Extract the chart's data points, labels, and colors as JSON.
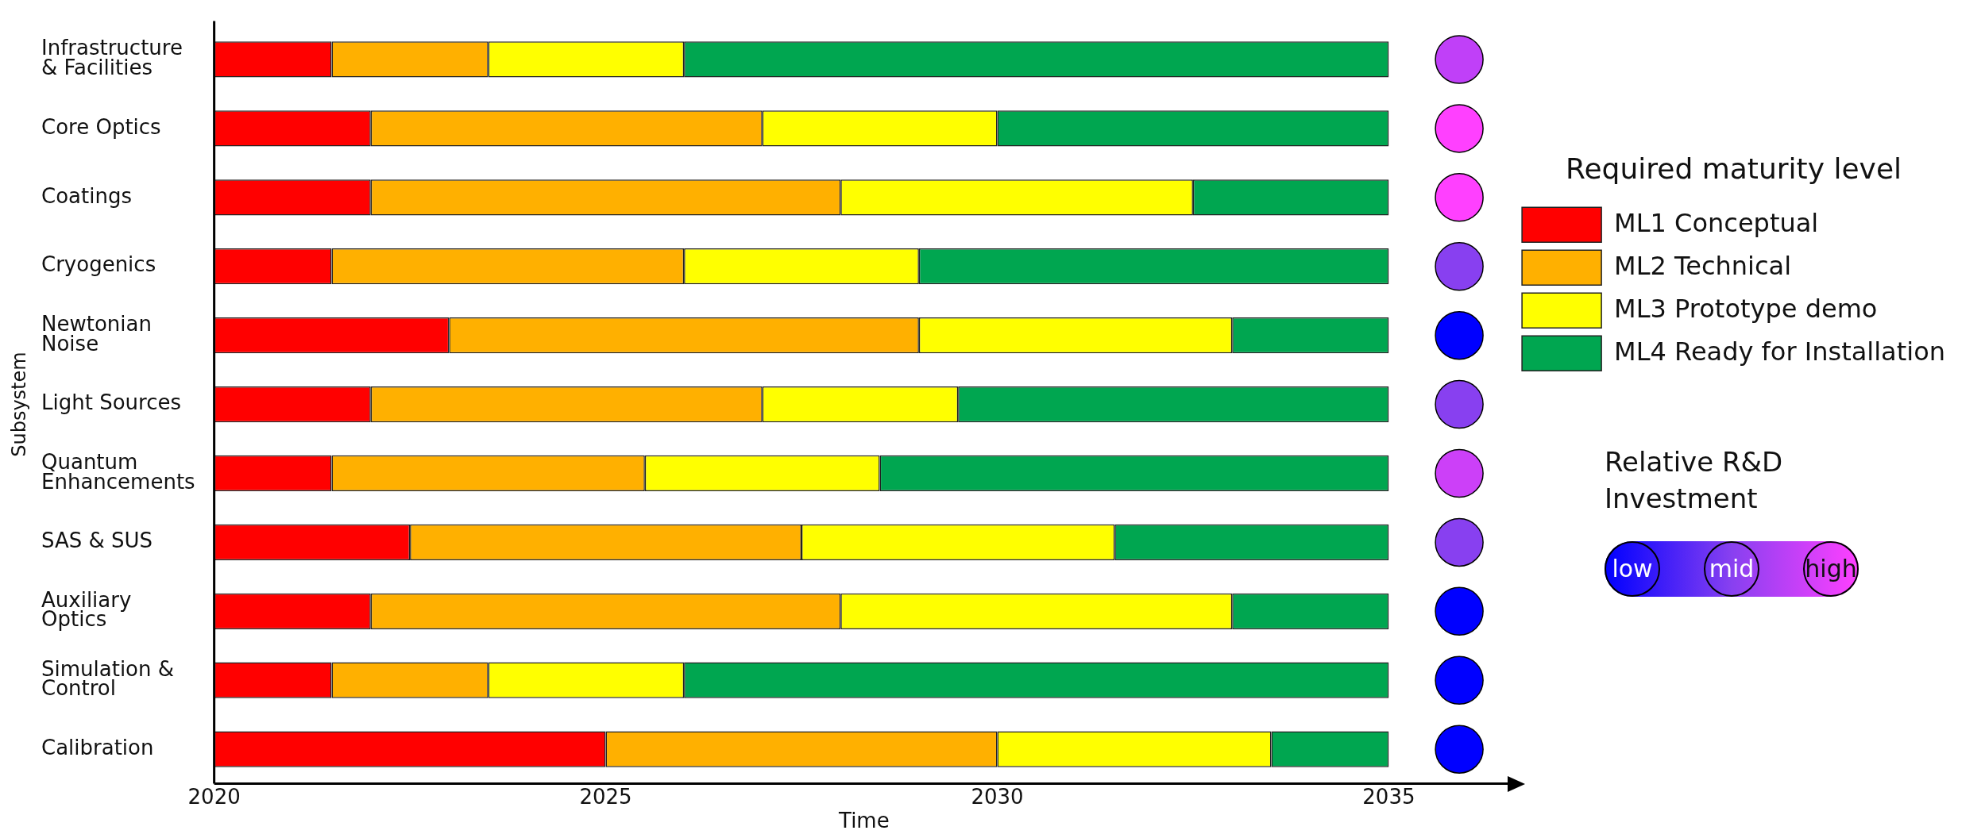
{
  "chart_data": {
    "type": "bar",
    "orientation": "horizontal",
    "xlabel": "Time",
    "ylabel": "Subsystem",
    "legend": "right",
    "legend_title": "Required maturity level",
    "grid": false,
    "categories": [
      "Infrastructure & Facilities",
      "Core Optics",
      "Coatings",
      "Cryogenics",
      "Newtonian Noise",
      "Light Sources",
      "Quantum Enhancements",
      "SAS & SUS",
      "Auxiliary Optics",
      "Simulation & Control",
      "Calibration"
    ],
    "xlim": [
      2020,
      2036.6
    ],
    "xticks": [
      2020,
      2025,
      2030,
      2035
    ],
    "series": [
      {
        "name": "ML1 Conceptual",
        "color": "#ff0000",
        "base": [
          2020,
          2020,
          2020,
          2020,
          2020,
          2020,
          2020,
          2020,
          2020,
          2020,
          2020
        ],
        "values": [
          1.5,
          2,
          2,
          1.5,
          3,
          2,
          1.5,
          2.5,
          2,
          1.5,
          5
        ]
      },
      {
        "name": "ML2 Technical",
        "color": "#ffb000",
        "base": [
          2021.5,
          2022,
          2022,
          2021.5,
          2023,
          2022,
          2021.5,
          2022.5,
          2022,
          2021.5,
          2025
        ],
        "values": [
          2,
          5,
          6,
          4.5,
          6,
          5,
          4,
          5,
          6,
          2,
          5
        ]
      },
      {
        "name": "ML3 Prototype demo",
        "color": "#ffff00",
        "base": [
          2023.5,
          2027,
          2028,
          2026,
          2029,
          2027,
          2025.5,
          2027.5,
          2028,
          2023.5,
          2030
        ],
        "values": [
          2.5,
          3,
          4.5,
          3,
          4,
          2.5,
          3,
          4,
          5,
          2.5,
          3.5
        ]
      },
      {
        "name": "ML4 Ready for Installation",
        "color": "#00a650",
        "base": [
          2026,
          2030,
          2032.5,
          2029,
          2033,
          2029.5,
          2028.5,
          2031.5,
          2033,
          2026,
          2033.5
        ],
        "values": [
          9,
          5,
          2.5,
          6,
          2,
          5.5,
          6.5,
          3.5,
          2,
          9,
          1.5
        ]
      },
      {
        "type": "scatter",
        "values": [
          2035.9,
          2035.9,
          2035.9,
          2035.9,
          2035.9,
          2035.9,
          2035.9,
          2035.9,
          2035.9,
          2035.9,
          2035.9
        ],
        "colors": [
          "#c040f8",
          "#ff40ff",
          "#ff40ff",
          "#8840f0",
          "#0000ff",
          "#8840f0",
          "#cc40f8",
          "#8840f0",
          "#0000ff",
          "#0000ff",
          "#0000ff"
        ]
      }
    ],
    "clabel": "Relative R&D Investment",
    "annotations": [
      "low",
      "mid",
      "high"
    ]
  }
}
